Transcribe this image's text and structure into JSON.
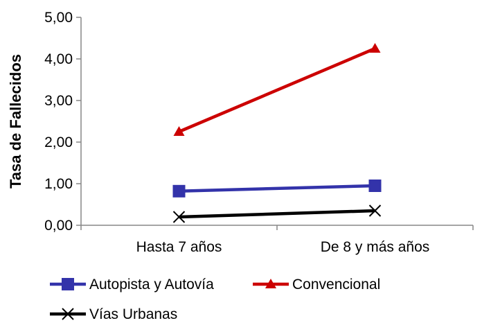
{
  "chart_data": {
    "type": "line",
    "categories": [
      "Hasta 7 años",
      "De 8 y más años"
    ],
    "ylabel": "Tasa de Fallecidos",
    "ylim": [
      0,
      5
    ],
    "y_ticks": [
      "0,00",
      "1,00",
      "2,00",
      "3,00",
      "4,00",
      "5,00"
    ],
    "grid": false,
    "legend_position": "bottom",
    "series": [
      {
        "name": "Autopista y Autovía",
        "values": [
          0.82,
          0.95
        ],
        "color": "#3333aa",
        "marker": "square"
      },
      {
        "name": "Convencional",
        "values": [
          2.25,
          4.25
        ],
        "color": "#cc0000",
        "marker": "triangle"
      },
      {
        "name": "Vías Urbanas",
        "values": [
          0.2,
          0.35
        ],
        "color": "#000000",
        "marker": "x"
      }
    ]
  }
}
